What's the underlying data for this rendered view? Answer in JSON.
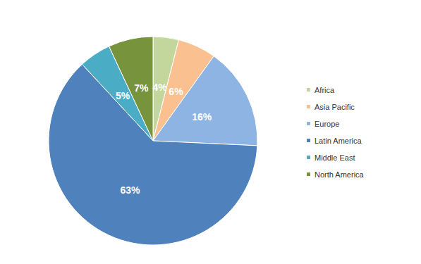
{
  "chart_data": {
    "type": "pie",
    "categories": [
      "Africa",
      "Asia Pacific",
      "Europe",
      "Latin America",
      "Middle East",
      "North America"
    ],
    "values": [
      4,
      6,
      16,
      63,
      5,
      7
    ],
    "value_labels": [
      "4%",
      "6%",
      "16%",
      "63%",
      "5%",
      "7%"
    ],
    "colors": [
      "#c3d69b",
      "#fac090",
      "#8eb4e3",
      "#4f81bd",
      "#4bacc6",
      "#77933c"
    ],
    "legend": "right",
    "data_labels": true
  }
}
